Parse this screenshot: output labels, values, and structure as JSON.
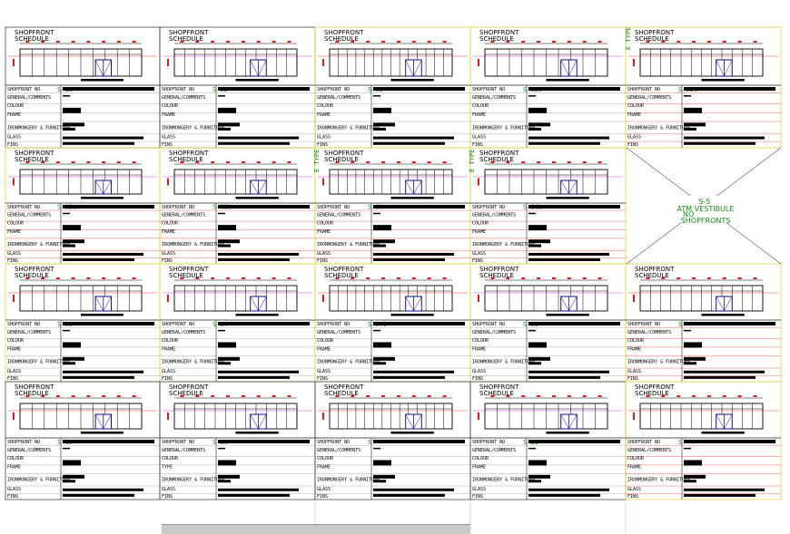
{
  "labels": {
    "header": "SHOPFRONT SCHEDULE",
    "header_line1": "SHOPFRONT",
    "header_line2": "SCHEDULE",
    "shopfront_no": "SHOPFRONT NO",
    "general": "GENERAL/COMMENTS",
    "colour": "COLOUR",
    "frame": "FRAME",
    "type": "TYPE",
    "ironmongery": "IRONMONGERY & FURNITURE",
    "glass": "GLASS",
    "fins": "FINS",
    "type_tag": "E TYPE"
  },
  "codes": [
    "S-1a",
    "S-1b",
    "S-02",
    "S-02b",
    "S-02c",
    "S-03a",
    "S-03b",
    "S-04",
    "S-04b",
    "S-06",
    "S-07",
    "S-07b",
    "S-08",
    "S",
    "S-09",
    "S-10",
    "S",
    "S-11",
    "S"
  ],
  "note": {
    "line1": "S-5",
    "line2": "ATM VESTIBULE",
    "line3": "NO",
    "line4": "SHOPFRONTS"
  },
  "colors": {
    "frame": "#000000",
    "magenta_rule": "#d23cd2",
    "red_rule": "#e8453c",
    "yellow_outline": "#e6d24a",
    "dimension": "#d81b1b",
    "door": "#101080",
    "code_text": "#1a8a1a"
  }
}
